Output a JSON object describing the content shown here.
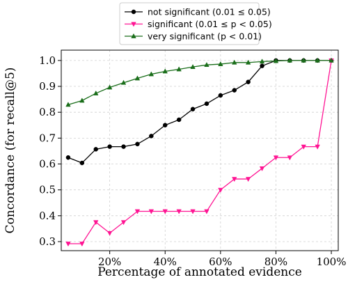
{
  "chart_data": {
    "type": "line",
    "xlabel": "Percentage of annotated evidence",
    "ylabel": "Concordance (for recall@5)",
    "xlim": [
      0.025,
      1.025
    ],
    "ylim": [
      0.265,
      1.04
    ],
    "x_ticks": [
      {
        "value": 0.2,
        "label": "20%"
      },
      {
        "value": 0.4,
        "label": "40%"
      },
      {
        "value": 0.6,
        "label": "60%"
      },
      {
        "value": 0.8,
        "label": "80%"
      },
      {
        "value": 1.0,
        "label": "100%"
      }
    ],
    "y_ticks": [
      {
        "value": 0.3,
        "label": "0.3"
      },
      {
        "value": 0.4,
        "label": "0.4"
      },
      {
        "value": 0.5,
        "label": "0.5"
      },
      {
        "value": 0.6,
        "label": "0.6"
      },
      {
        "value": 0.7,
        "label": "0.7"
      },
      {
        "value": 0.8,
        "label": "0.8"
      },
      {
        "value": 0.9,
        "label": "0.9"
      },
      {
        "value": 1.0,
        "label": "1.0"
      }
    ],
    "grid": true,
    "legend_position": "top-center",
    "x": [
      0.05,
      0.1,
      0.15,
      0.2,
      0.25,
      0.3,
      0.35,
      0.4,
      0.45,
      0.5,
      0.55,
      0.6,
      0.65,
      0.7,
      0.75,
      0.8,
      0.85,
      0.9,
      0.95,
      1.0
    ],
    "series": [
      {
        "name": "not significant (0.01 ≤ 0.05)",
        "color": "#000000",
        "marker": "circle",
        "values": [
          0.625,
          0.604,
          0.657,
          0.667,
          0.667,
          0.677,
          0.708,
          0.75,
          0.771,
          0.812,
          0.833,
          0.865,
          0.885,
          0.917,
          0.979,
          1.0,
          1.0,
          1.0,
          1.0,
          1.0
        ]
      },
      {
        "name": "significant (0.01 ≤ p < 0.05)",
        "color": "#ff1493",
        "marker": "triangle-down",
        "values": [
          0.292,
          0.292,
          0.375,
          0.333,
          0.375,
          0.417,
          0.417,
          0.417,
          0.417,
          0.417,
          0.417,
          0.5,
          0.542,
          0.542,
          0.583,
          0.625,
          0.625,
          0.667,
          0.667,
          1.0
        ]
      },
      {
        "name": "very significant (p < 0.01)",
        "color": "#1a6e1a",
        "marker": "triangle-up",
        "values": [
          0.829,
          0.845,
          0.873,
          0.896,
          0.914,
          0.931,
          0.947,
          0.958,
          0.966,
          0.975,
          0.983,
          0.986,
          0.992,
          0.992,
          0.996,
          0.998,
          1.0,
          1.0,
          1.0,
          1.0
        ]
      }
    ]
  }
}
